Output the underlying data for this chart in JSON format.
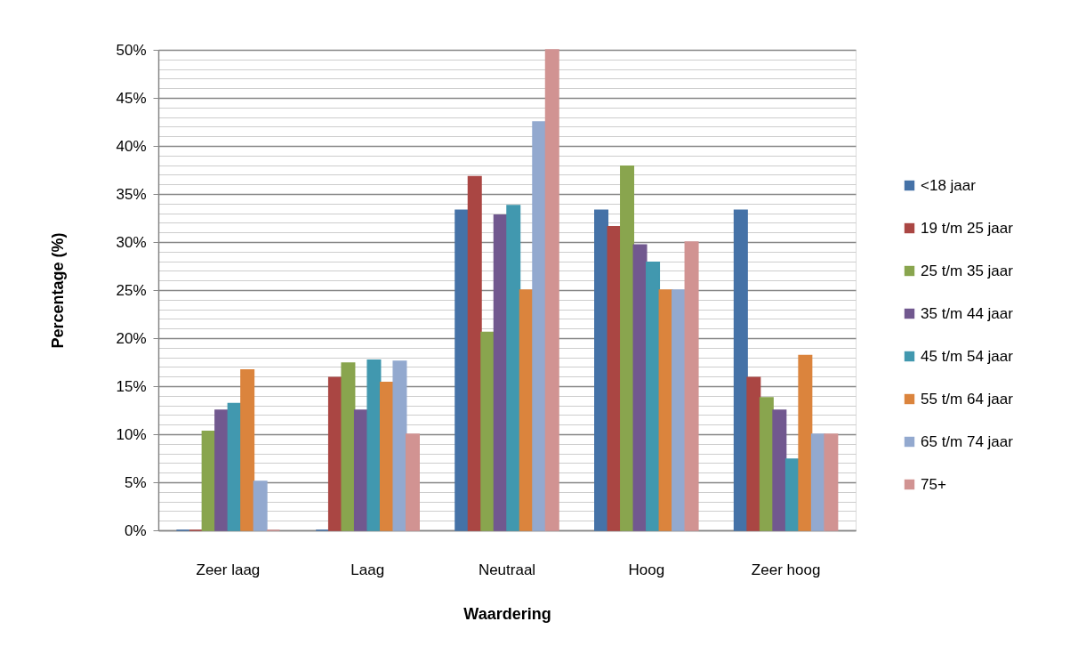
{
  "chart_data": {
    "type": "bar",
    "xlabel": "Waardering",
    "ylabel": "Percentage (%)",
    "categories": [
      "Zeer laag",
      "Laag",
      "Neutraal",
      "Hoog",
      "Zeer hoog"
    ],
    "series": [
      {
        "name": "<18 jaar",
        "color": "#4572a7",
        "values": [
          0,
          0,
          33.3,
          33.3,
          33.3
        ]
      },
      {
        "name": "19 t/m 25 jaar",
        "color": "#aa4643",
        "values": [
          0,
          15.9,
          36.8,
          31.6,
          15.9
        ]
      },
      {
        "name": "25 t/m 35 jaar",
        "color": "#89a54e",
        "values": [
          10.3,
          17.4,
          20.6,
          37.9,
          13.8
        ]
      },
      {
        "name": "35 t/m 44 jaar",
        "color": "#71588f",
        "values": [
          12.5,
          12.5,
          32.8,
          29.7,
          12.5
        ]
      },
      {
        "name": "45 t/m 54 jaar",
        "color": "#4198af",
        "values": [
          13.2,
          17.7,
          33.8,
          27.9,
          7.4
        ]
      },
      {
        "name": "55 t/m 64 jaar",
        "color": "#db843d",
        "values": [
          16.7,
          15.4,
          25.0,
          25.0,
          18.2
        ]
      },
      {
        "name": "65 t/m 74 jaar",
        "color": "#93a9cf",
        "values": [
          5.1,
          17.6,
          42.5,
          25.0,
          10.0
        ]
      },
      {
        "name": "75+",
        "color": "#d19392",
        "values": [
          0,
          10.0,
          50.0,
          30.0,
          10.0
        ]
      }
    ],
    "ylim": [
      0,
      50
    ],
    "yticks": [
      {
        "value": 0,
        "label": "0%"
      },
      {
        "value": 1,
        "label": null
      },
      {
        "value": 2,
        "label": null
      },
      {
        "value": 3,
        "label": null
      },
      {
        "value": 4,
        "label": null
      },
      {
        "value": 5,
        "label": "5%"
      },
      {
        "value": 6,
        "label": null
      },
      {
        "value": 7,
        "label": null
      },
      {
        "value": 8,
        "label": null
      },
      {
        "value": 9,
        "label": null
      },
      {
        "value": 10,
        "label": "10%"
      },
      {
        "value": 11,
        "label": null
      },
      {
        "value": 12,
        "label": null
      },
      {
        "value": 13,
        "label": null
      },
      {
        "value": 14,
        "label": null
      },
      {
        "value": 15,
        "label": "15%"
      },
      {
        "value": 16,
        "label": null
      },
      {
        "value": 17,
        "label": null
      },
      {
        "value": 18,
        "label": null
      },
      {
        "value": 19,
        "label": null
      },
      {
        "value": 20,
        "label": "20%"
      },
      {
        "value": 21,
        "label": null
      },
      {
        "value": 22,
        "label": null
      },
      {
        "value": 23,
        "label": null
      },
      {
        "value": 24,
        "label": null
      },
      {
        "value": 25,
        "label": "25%"
      },
      {
        "value": 26,
        "label": null
      },
      {
        "value": 27,
        "label": null
      },
      {
        "value": 28,
        "label": null
      },
      {
        "value": 29,
        "label": null
      },
      {
        "value": 30,
        "label": "30%"
      },
      {
        "value": 31,
        "label": null
      },
      {
        "value": 32,
        "label": null
      },
      {
        "value": 33,
        "label": null
      },
      {
        "value": 34,
        "label": null
      },
      {
        "value": 35,
        "label": "35%"
      },
      {
        "value": 36,
        "label": null
      },
      {
        "value": 37,
        "label": null
      },
      {
        "value": 38,
        "label": null
      },
      {
        "value": 39,
        "label": null
      },
      {
        "value": 40,
        "label": "40%"
      },
      {
        "value": 41,
        "label": null
      },
      {
        "value": 42,
        "label": null
      },
      {
        "value": 43,
        "label": null
      },
      {
        "value": 44,
        "label": null
      },
      {
        "value": 45,
        "label": "45%"
      },
      {
        "value": 46,
        "label": null
      },
      {
        "value": 47,
        "label": null
      },
      {
        "value": 48,
        "label": null
      },
      {
        "value": 49,
        "label": null
      },
      {
        "value": 50,
        "label": "50%"
      }
    ],
    "grid": "y",
    "legend": "right"
  }
}
